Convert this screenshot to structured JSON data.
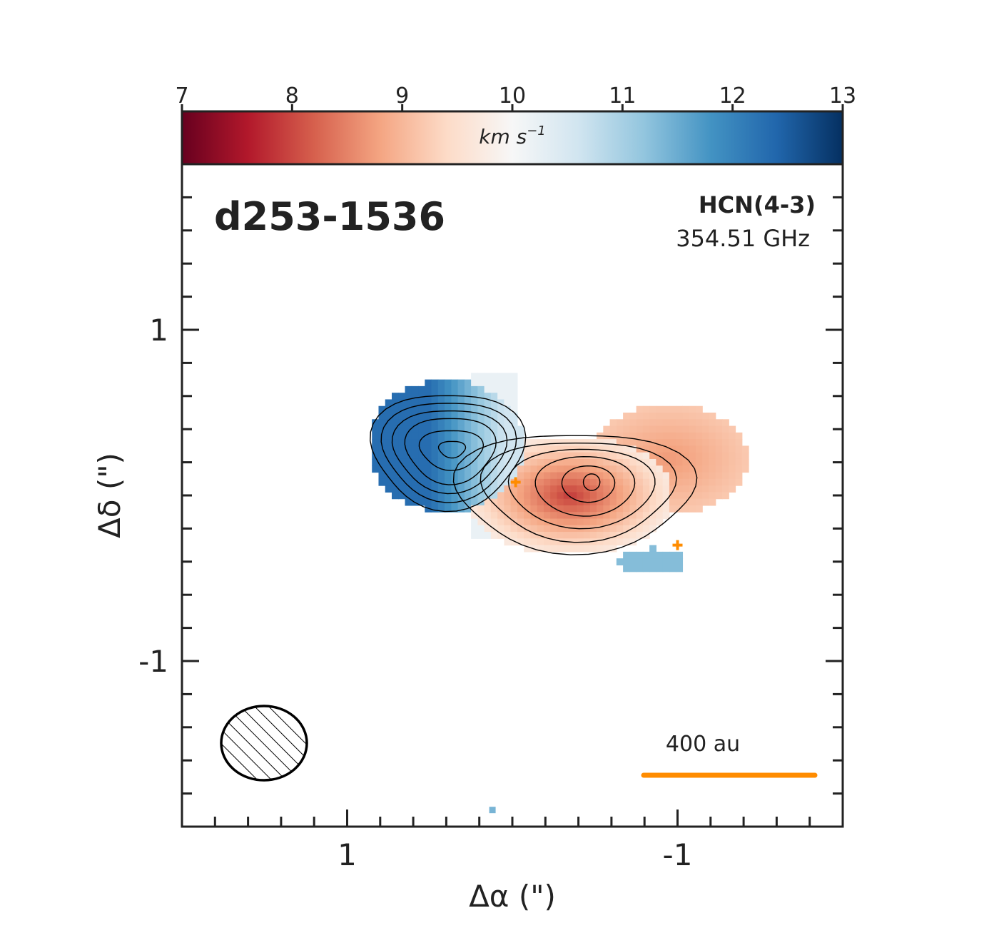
{
  "chart_data": {
    "type": "heatmap",
    "source_name": "d253-1536",
    "line_name": "HCN(4-3)",
    "frequency": "354.51 GHz",
    "xlabel": "Δα (\")",
    "ylabel": "Δδ (\")",
    "xlim": [
      2.0,
      -2.0
    ],
    "ylim": [
      -2.0,
      2.0
    ],
    "x_ticks": [
      1,
      -1
    ],
    "y_ticks": [
      1,
      -1
    ],
    "colorbar": {
      "label": "km s",
      "label_exponent": "−1",
      "range": [
        7,
        13
      ],
      "ticks": [
        7,
        8,
        9,
        10,
        11,
        12,
        13
      ],
      "cmap": "RdBu",
      "cmap_stops": [
        "#67001f",
        "#b2182b",
        "#d6604d",
        "#f4a582",
        "#fddbc7",
        "#f7f7f7",
        "#d1e5f0",
        "#92c5de",
        "#4393c3",
        "#2166ac",
        "#053061"
      ]
    },
    "components": [
      {
        "name": "blue lobe",
        "center": [
          0.4,
          0.3
        ],
        "velocity_kms": 12.3
      },
      {
        "name": "red lobe",
        "center": [
          -0.35,
          0.0
        ],
        "velocity_kms": 7.9
      }
    ],
    "markers": [
      {
        "x": -0.02,
        "y": 0.08,
        "color": "#ff8c00"
      },
      {
        "x": -1.0,
        "y": -0.3,
        "color": "#ff8c00"
      }
    ],
    "beam": {
      "major_arcsec": 0.52,
      "minor_arcsec": 0.45,
      "hatched": true
    },
    "scalebar": {
      "label": "400 au",
      "length_arcsec": 1.04,
      "color": "#ff8c00"
    }
  }
}
